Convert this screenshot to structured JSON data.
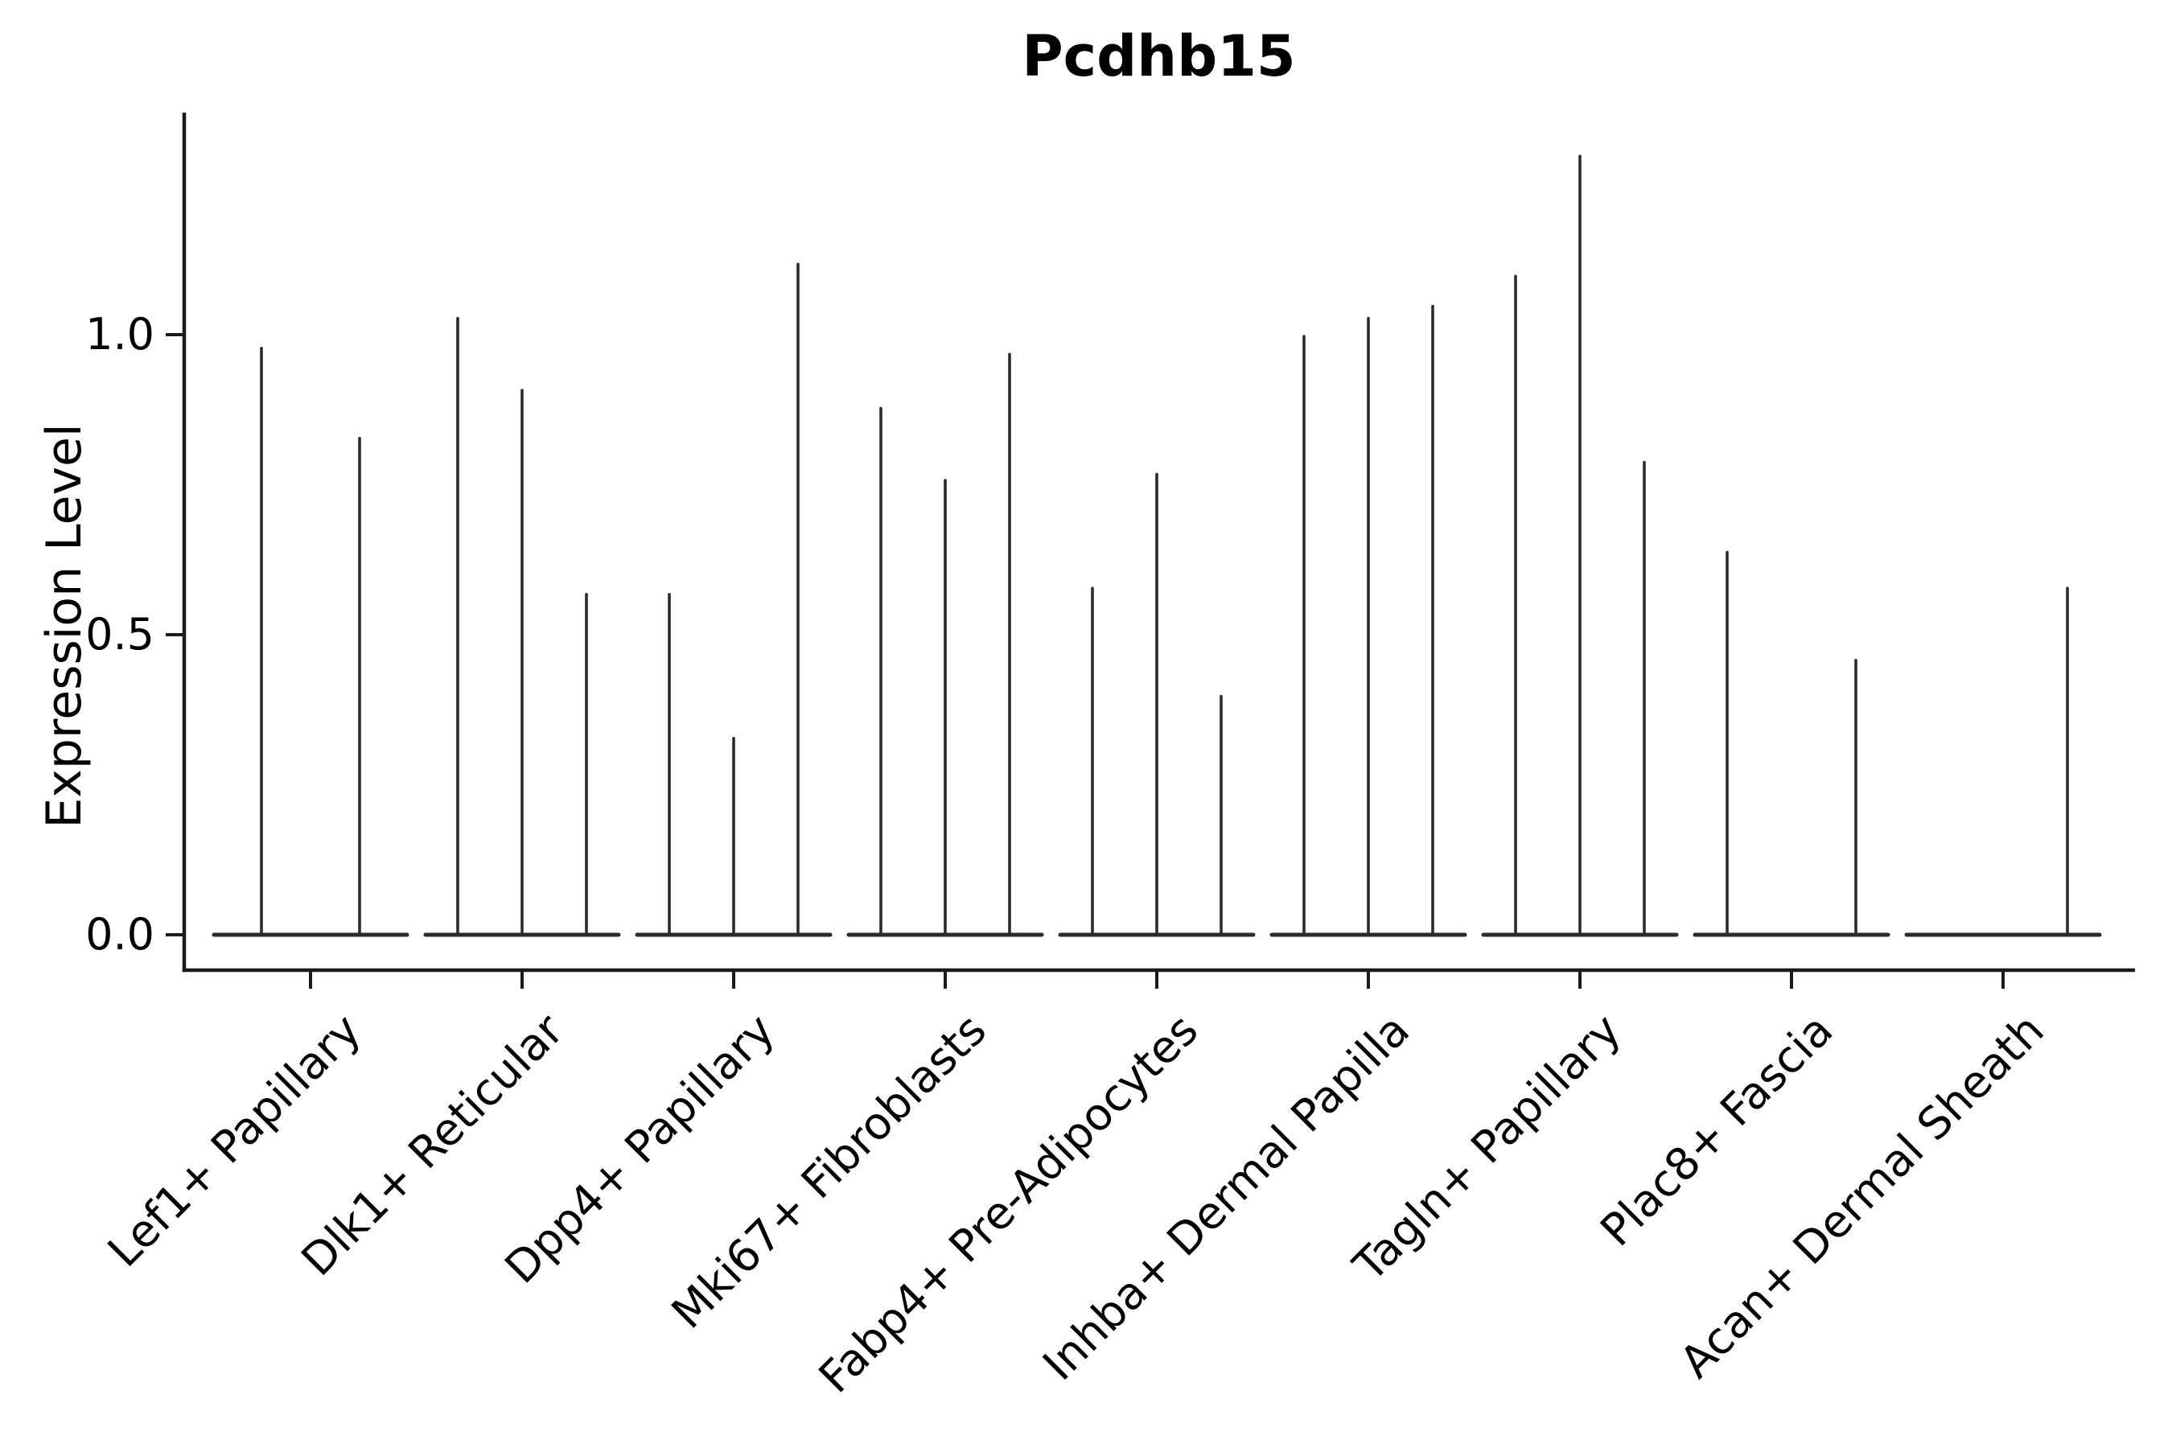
{
  "title": "Pcdhb15",
  "chart_data": {
    "type": "violin",
    "title": "Pcdhb15",
    "xlabel": "",
    "ylabel": "Expression Level",
    "ytick_labels": [
      "0.0",
      "0.5",
      "1.0"
    ],
    "ytick_values": [
      0.0,
      0.5,
      1.0
    ],
    "ylim": [
      -0.06,
      1.37
    ],
    "grid": false,
    "legend_position": "none",
    "x_tick_rotation": 45,
    "description": "Split violin plot of gene expression; each cell-type group shows 2-3 razor-thin violins: a flat base at 0 with a thin spike rising to the maximum expression value.",
    "categories": [
      "Lef1+ Papillary",
      "Dlk1+ Reticular",
      "Dpp4+ Papillary",
      "Mki67+ Fibroblasts",
      "Fabp4+ Pre-Adipocytes",
      "Inhba+ Dermal Papilla",
      "Tagln+ Papillary",
      "Plac8+ Fascia",
      "Acan+ Dermal Sheath"
    ],
    "groups": [
      {
        "label": "Lef1+ Papillary",
        "violins": [
          {
            "slot_dx": -61,
            "max": 0.98
          },
          {
            "slot_dx": 61,
            "max": 0.83
          }
        ]
      },
      {
        "label": "Dlk1+ Reticular",
        "violins": [
          {
            "slot_dx": -80,
            "max": 1.03
          },
          {
            "slot_dx": 0,
            "max": 0.91
          },
          {
            "slot_dx": 80,
            "max": 0.57
          }
        ]
      },
      {
        "label": "Dpp4+ Papillary",
        "violins": [
          {
            "slot_dx": -80,
            "max": 0.57
          },
          {
            "slot_dx": 0,
            "max": 0.33
          },
          {
            "slot_dx": 80,
            "max": 1.12
          }
        ]
      },
      {
        "label": "Mki67+ Fibroblasts",
        "violins": [
          {
            "slot_dx": -80,
            "max": 0.88
          },
          {
            "slot_dx": 0,
            "max": 0.76
          },
          {
            "slot_dx": 80,
            "max": 0.97
          }
        ]
      },
      {
        "label": "Fabp4+ Pre-Adipocytes",
        "violins": [
          {
            "slot_dx": -80,
            "max": 0.58
          },
          {
            "slot_dx": 0,
            "max": 0.77
          },
          {
            "slot_dx": 80,
            "max": 0.4
          }
        ]
      },
      {
        "label": "Inhba+ Dermal Papilla",
        "violins": [
          {
            "slot_dx": -80,
            "max": 1.0
          },
          {
            "slot_dx": 0,
            "max": 1.03
          },
          {
            "slot_dx": 80,
            "max": 1.05
          }
        ]
      },
      {
        "label": "Tagln+ Papillary",
        "violins": [
          {
            "slot_dx": -80,
            "max": 1.1
          },
          {
            "slot_dx": 0,
            "max": 1.3
          },
          {
            "slot_dx": 80,
            "max": 0.79
          }
        ]
      },
      {
        "label": "Plac8+ Fascia",
        "violins": [
          {
            "slot_dx": -80,
            "max": 0.64
          },
          {
            "slot_dx": 0,
            "max": 0.0
          },
          {
            "slot_dx": 80,
            "max": 0.46
          }
        ]
      },
      {
        "label": "Acan+ Dermal Sheath",
        "violins": [
          {
            "slot_dx": -80,
            "max": 0.0
          },
          {
            "slot_dx": 0,
            "max": 0.0
          },
          {
            "slot_dx": 80,
            "max": 0.58
          }
        ]
      }
    ],
    "colors": {
      "violin": "#2b2b2b",
      "axis": "#1a1a1a",
      "text": "#000000",
      "background": "#ffffff"
    }
  }
}
